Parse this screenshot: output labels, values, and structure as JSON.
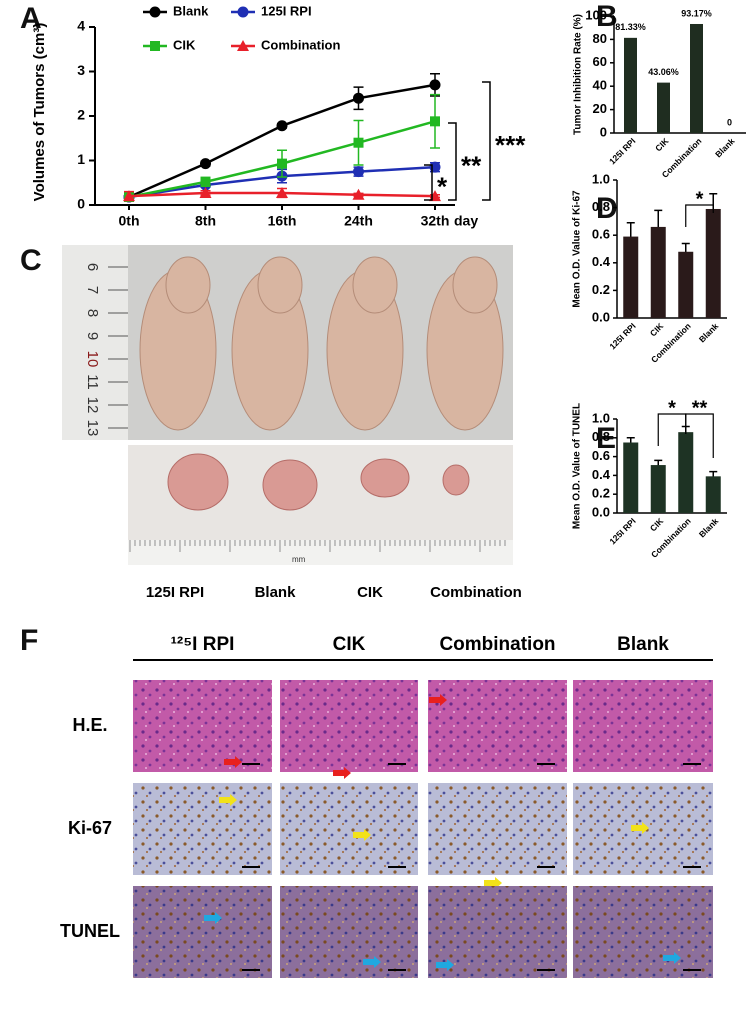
{
  "panel_labels": [
    "A",
    "B",
    "C",
    "D",
    "E",
    "F"
  ],
  "chart_data": [
    {
      "type": "line",
      "ylabel": "Volumes of Tumors (cm³)",
      "xlabel": "day",
      "categories": [
        "0th",
        "8th",
        "16th",
        "24th",
        "32th"
      ],
      "ylim": [
        0,
        4
      ],
      "yticks": [
        0,
        1,
        2,
        3,
        4
      ],
      "series": [
        {
          "name": "Blank",
          "color": "#000000",
          "marker": "circle",
          "values": [
            0.18,
            0.93,
            1.78,
            2.4,
            2.7
          ],
          "errors": [
            0.05,
            0.05,
            0.05,
            0.25,
            0.25
          ]
        },
        {
          "name": "125I RPI",
          "color": "#1f2fb4",
          "marker": "circle",
          "values": [
            0.18,
            0.45,
            0.65,
            0.75,
            0.85
          ],
          "errors": [
            0.05,
            0.05,
            0.15,
            0.1,
            0.1
          ]
        },
        {
          "name": "CIK",
          "color": "#22b822",
          "marker": "square",
          "values": [
            0.18,
            0.52,
            0.93,
            1.4,
            1.88
          ],
          "errors": [
            0.05,
            0.1,
            0.3,
            0.5,
            0.6
          ]
        },
        {
          "name": "Combination",
          "color": "#e8202a",
          "marker": "triangle",
          "values": [
            0.2,
            0.27,
            0.27,
            0.23,
            0.2
          ],
          "errors": [
            0.1,
            0.05,
            0.1,
            0.03,
            0.03
          ]
        }
      ],
      "annotations": [
        "*",
        "**",
        "***"
      ]
    },
    {
      "type": "bar",
      "ylabel": "Tumor Inhibition Rate (%)",
      "categories": [
        "125I RPI",
        "CIK",
        "Combination",
        "Blank"
      ],
      "values": [
        81.33,
        43.06,
        93.17,
        0
      ],
      "value_labels": [
        "81.33%",
        "43.06%",
        "93.17%",
        "0"
      ],
      "color": "#1f2d20",
      "ylim": [
        0,
        100
      ],
      "yticks": [
        0,
        20,
        40,
        60,
        80,
        100
      ]
    },
    {
      "type": "bar",
      "ylabel": "Mean O.D. Value of Ki-67",
      "categories": [
        "125I RPI",
        "CIK",
        "Combination",
        "Blank"
      ],
      "values": [
        0.59,
        0.66,
        0.48,
        0.79
      ],
      "errors": [
        0.1,
        0.12,
        0.06,
        0.11
      ],
      "color": "#2a1a1a",
      "ylim": [
        0,
        1
      ],
      "yticks": [
        {
          "value": 0,
          "label": "0.0"
        },
        {
          "value": 0.2,
          "label": "0.2"
        },
        {
          "value": 0.4,
          "label": "0.4"
        },
        {
          "value": 0.6,
          "label": "0.6"
        },
        {
          "value": 0.8,
          "label": "0.8"
        },
        {
          "value": 1,
          "label": "1.0"
        }
      ],
      "annotations": [
        "*"
      ]
    },
    {
      "type": "bar",
      "ylabel": "Mean O.D. Value of TUNEL",
      "categories": [
        "125I RPI",
        "CIK",
        "Combination",
        "Blank"
      ],
      "values": [
        0.75,
        0.51,
        0.86,
        0.39
      ],
      "errors": [
        0.05,
        0.05,
        0.06,
        0.05
      ],
      "color": "#1e3324",
      "ylim": [
        0,
        1
      ],
      "yticks": [
        {
          "value": 0,
          "label": "0.0"
        },
        {
          "value": 0.2,
          "label": "0.2"
        },
        {
          "value": 0.4,
          "label": "0.4"
        },
        {
          "value": 0.6,
          "label": "0.6"
        },
        {
          "value": 0.8,
          "label": "0.8"
        },
        {
          "value": 1,
          "label": "1.0"
        }
      ],
      "annotations": [
        "*",
        "**"
      ]
    }
  ],
  "ruler_labels": [
    "6",
    "7",
    "8",
    "9",
    "10",
    "11",
    "12",
    "13"
  ],
  "ruler_unit": "mm",
  "photo_captions": [
    "125I RPI",
    "Blank",
    "CIK",
    "Combination"
  ],
  "histology": {
    "columns": [
      "¹²⁵I RPI",
      "CIK",
      "Combination",
      "Blank"
    ],
    "rows": [
      "H.E.",
      "Ki-67",
      "TUNEL"
    ]
  }
}
